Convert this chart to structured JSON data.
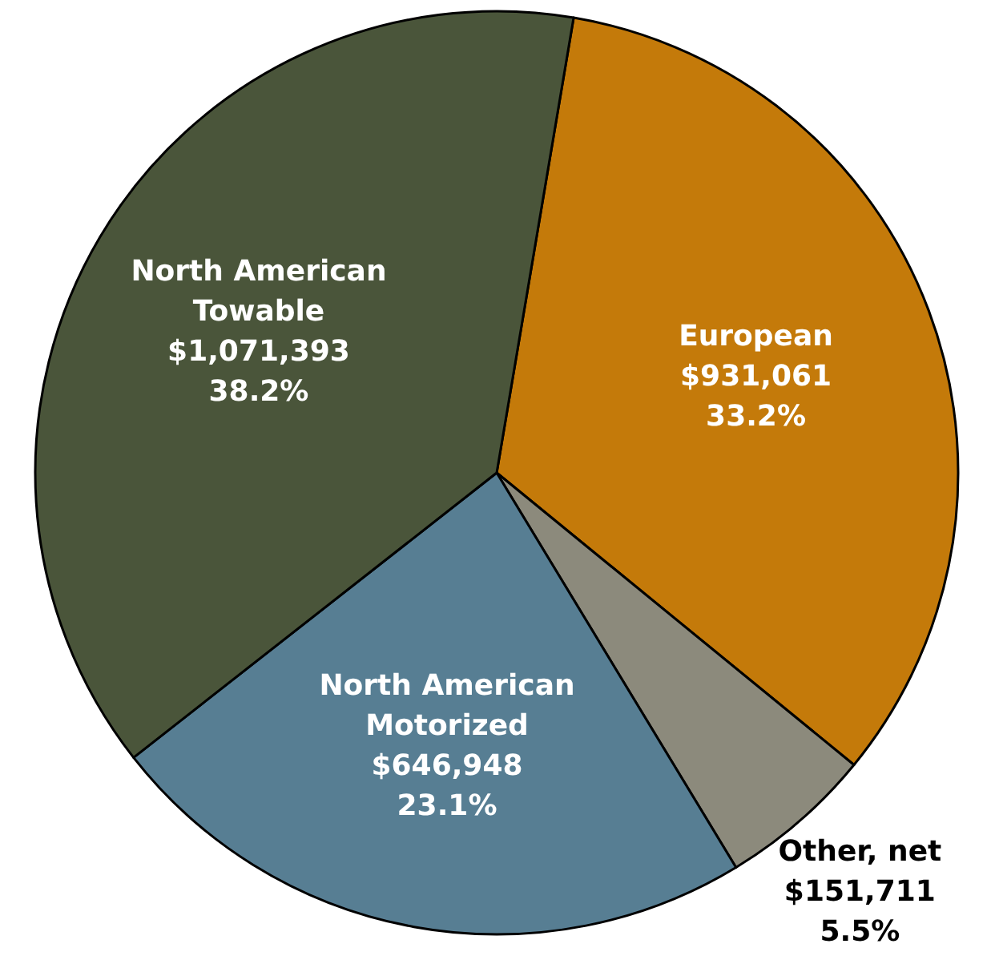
{
  "chart_data": {
    "type": "pie",
    "categories": [
      "European",
      "Other, net",
      "North American Motorized",
      "North American Towable"
    ],
    "values": [
      931061,
      151711,
      646948,
      1071393
    ],
    "value_labels": [
      "$931,061\n33.2%",
      "$151,711\n5.5%",
      "$646,948\n23.1%",
      "$1,071,393\n38.2%"
    ],
    "colors": [
      "#c47a0a",
      "#8c8a7c",
      "#577e93",
      "#4a553a"
    ]
  }
}
